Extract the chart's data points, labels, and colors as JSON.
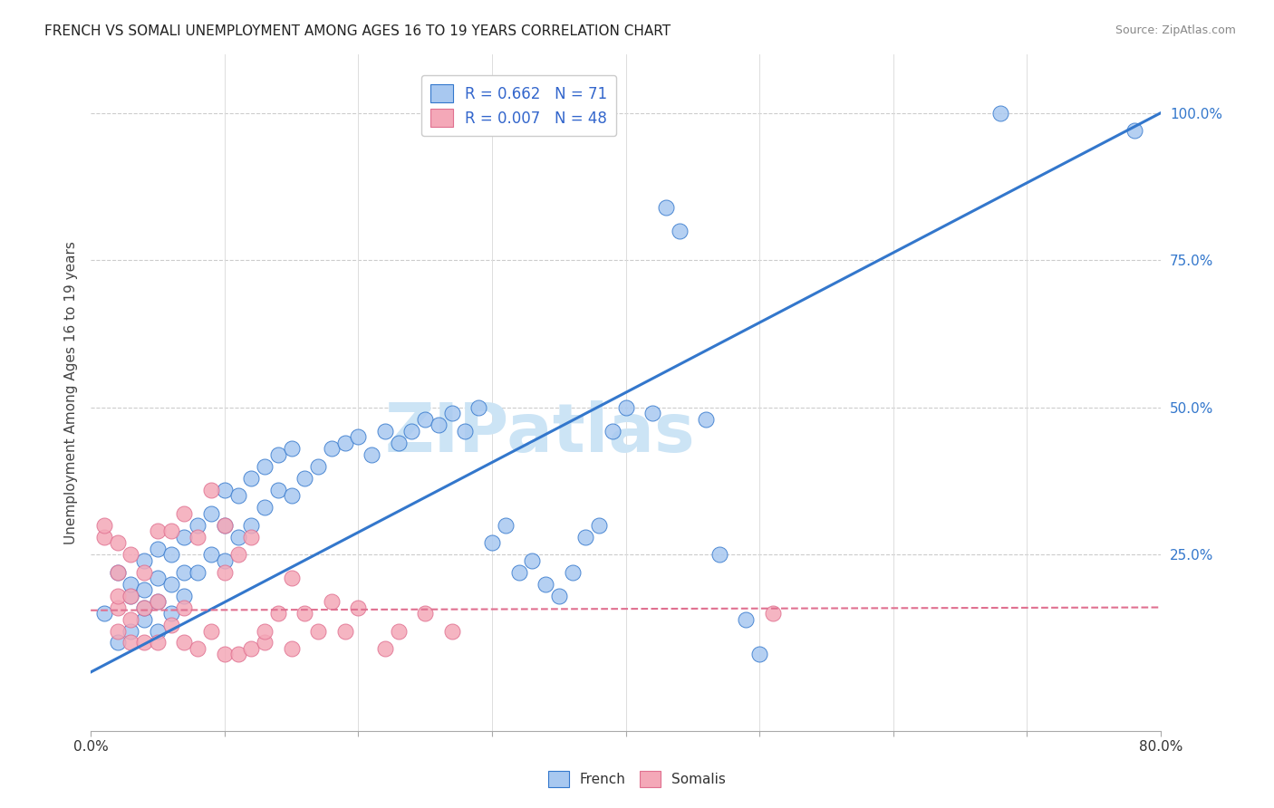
{
  "title": "FRENCH VS SOMALI UNEMPLOYMENT AMONG AGES 16 TO 19 YEARS CORRELATION CHART",
  "source_text": "Source: ZipAtlas.com",
  "ylabel": "Unemployment Among Ages 16 to 19 years",
  "xlim": [
    0.0,
    0.8
  ],
  "ylim": [
    -0.05,
    1.1
  ],
  "xticks": [
    0.0,
    0.1,
    0.2,
    0.3,
    0.4,
    0.5,
    0.6,
    0.7,
    0.8
  ],
  "xticklabels": [
    "0.0%",
    "",
    "",
    "",
    "",
    "",
    "",
    "",
    "80.0%"
  ],
  "yticks_right": [
    0.25,
    0.5,
    0.75,
    1.0
  ],
  "ytick_right_labels": [
    "25.0%",
    "50.0%",
    "75.0%",
    "100.0%"
  ],
  "french_R": "0.662",
  "french_N": "71",
  "somali_R": "0.007",
  "somali_N": "48",
  "french_color": "#a8c8f0",
  "somali_color": "#f4a8b8",
  "french_line_color": "#3377cc",
  "somali_line_color": "#e07090",
  "watermark": "ZIPatlas",
  "watermark_color": "#cce4f5",
  "background_color": "#ffffff",
  "title_fontsize": 11,
  "french_x": [
    0.01,
    0.02,
    0.02,
    0.03,
    0.03,
    0.03,
    0.04,
    0.04,
    0.04,
    0.04,
    0.05,
    0.05,
    0.05,
    0.05,
    0.06,
    0.06,
    0.06,
    0.07,
    0.07,
    0.07,
    0.08,
    0.08,
    0.09,
    0.09,
    0.1,
    0.1,
    0.1,
    0.11,
    0.11,
    0.12,
    0.12,
    0.13,
    0.13,
    0.14,
    0.14,
    0.15,
    0.15,
    0.16,
    0.17,
    0.18,
    0.19,
    0.2,
    0.21,
    0.22,
    0.23,
    0.24,
    0.25,
    0.26,
    0.27,
    0.28,
    0.29,
    0.3,
    0.31,
    0.32,
    0.33,
    0.34,
    0.35,
    0.36,
    0.37,
    0.38,
    0.39,
    0.4,
    0.42,
    0.43,
    0.44,
    0.46,
    0.47,
    0.49,
    0.5,
    0.68,
    0.78
  ],
  "french_y": [
    0.15,
    0.1,
    0.22,
    0.12,
    0.18,
    0.2,
    0.14,
    0.16,
    0.19,
    0.24,
    0.12,
    0.17,
    0.21,
    0.26,
    0.15,
    0.2,
    0.25,
    0.18,
    0.22,
    0.28,
    0.22,
    0.3,
    0.25,
    0.32,
    0.24,
    0.3,
    0.36,
    0.28,
    0.35,
    0.3,
    0.38,
    0.33,
    0.4,
    0.36,
    0.42,
    0.35,
    0.43,
    0.38,
    0.4,
    0.43,
    0.44,
    0.45,
    0.42,
    0.46,
    0.44,
    0.46,
    0.48,
    0.47,
    0.49,
    0.46,
    0.5,
    0.27,
    0.3,
    0.22,
    0.24,
    0.2,
    0.18,
    0.22,
    0.28,
    0.3,
    0.46,
    0.5,
    0.49,
    0.84,
    0.8,
    0.48,
    0.25,
    0.14,
    0.08,
    1.0,
    0.97
  ],
  "somali_x": [
    0.01,
    0.01,
    0.02,
    0.02,
    0.02,
    0.02,
    0.02,
    0.03,
    0.03,
    0.03,
    0.03,
    0.04,
    0.04,
    0.04,
    0.05,
    0.05,
    0.05,
    0.06,
    0.06,
    0.07,
    0.07,
    0.07,
    0.08,
    0.08,
    0.09,
    0.09,
    0.1,
    0.1,
    0.1,
    0.11,
    0.11,
    0.12,
    0.12,
    0.13,
    0.13,
    0.14,
    0.15,
    0.15,
    0.16,
    0.17,
    0.18,
    0.19,
    0.2,
    0.22,
    0.23,
    0.25,
    0.27,
    0.51
  ],
  "somali_y": [
    0.28,
    0.3,
    0.12,
    0.16,
    0.18,
    0.22,
    0.27,
    0.1,
    0.14,
    0.18,
    0.25,
    0.1,
    0.16,
    0.22,
    0.1,
    0.17,
    0.29,
    0.13,
    0.29,
    0.1,
    0.16,
    0.32,
    0.09,
    0.28,
    0.12,
    0.36,
    0.08,
    0.22,
    0.3,
    0.08,
    0.25,
    0.09,
    0.28,
    0.1,
    0.12,
    0.15,
    0.09,
    0.21,
    0.15,
    0.12,
    0.17,
    0.12,
    0.16,
    0.09,
    0.12,
    0.15,
    0.12,
    0.15
  ],
  "french_line_x": [
    0.0,
    0.8
  ],
  "french_line_y": [
    0.05,
    1.0
  ],
  "somali_line_x": [
    0.0,
    0.8
  ],
  "somali_line_y": [
    0.155,
    0.16
  ]
}
